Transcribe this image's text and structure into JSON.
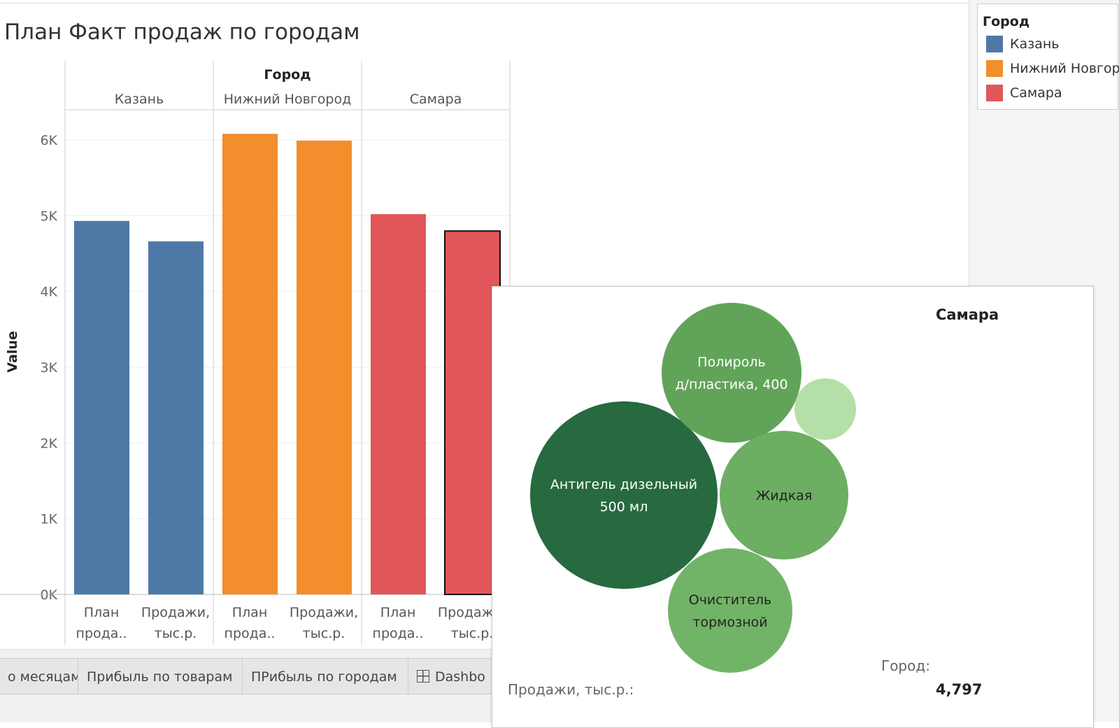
{
  "title": "План Факт продаж по городам",
  "legend": {
    "title": "Город",
    "items": [
      {
        "label": "Казань",
        "color": "#4e79a7"
      },
      {
        "label": "Нижний Новгород",
        "color": "#f28e2b"
      },
      {
        "label": "Самара",
        "color": "#e15759"
      }
    ]
  },
  "chart_data": {
    "type": "bar",
    "column_header": "Город",
    "panes": [
      "Казань",
      "Нижний Новгород",
      "Самара"
    ],
    "categories": [
      [
        "План",
        "прода.."
      ],
      [
        "Продажи,",
        "тыс.р."
      ]
    ],
    "ylabel": "Value",
    "ylim": [
      0,
      6500
    ],
    "yticks": [
      "0K",
      "1K",
      "2K",
      "3K",
      "4K",
      "5K",
      "6K"
    ],
    "grid": true,
    "values": [
      [
        4930,
        4660
      ],
      [
        6080,
        5990
      ],
      [
        5020,
        4797
      ]
    ],
    "colors": [
      "#4e79a7",
      "#f28e2b",
      "#e15759"
    ],
    "selected": {
      "pane": 2,
      "bar": 1
    }
  },
  "tabs": [
    "о месяцам",
    "Прибыль по товарам",
    "ПРибыль по городам",
    "Dashbo"
  ],
  "tooltip": {
    "city": "Самара",
    "city_label": "Город:",
    "sales_label": "Продажи,  тыс.р.:",
    "sales_value": "4,797",
    "bubbles": [
      {
        "label": [
          "Антигель дизельный",
          "500 мл"
        ],
        "color": "#276a3f",
        "text_color": "#ffffff"
      },
      {
        "label": [
          "Полироль",
          "д/пластика, 400"
        ],
        "color": "#61a459",
        "text_color": "#ffffff"
      },
      {
        "label": [],
        "color": "#b5dfa8",
        "text_color": "#ffffff"
      },
      {
        "label": [
          "Жидкая"
        ],
        "color": "#6cae62",
        "text_color": "#222222"
      },
      {
        "label": [
          "Очиститель",
          "тормозной"
        ],
        "color": "#72b467",
        "text_color": "#222222"
      }
    ]
  }
}
